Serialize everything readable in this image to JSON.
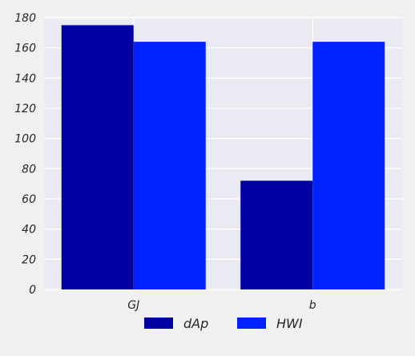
{
  "chart_data": {
    "type": "bar",
    "categories": [
      "GJ",
      "b"
    ],
    "series": [
      {
        "name": "dAp",
        "values": [
          175,
          72
        ],
        "color": "#0000a0"
      },
      {
        "name": "HWI",
        "values": [
          164,
          164
        ],
        "color": "#0022ff"
      }
    ],
    "ylim": [
      0,
      180
    ],
    "yticks": [
      "0",
      "20",
      "40",
      "60",
      "80",
      "100",
      "120",
      "140",
      "160",
      "180"
    ],
    "grid": true,
    "legend_position": "bottom-center",
    "plot_background": "#eaeaf2",
    "page_background": "#f0f0f0"
  }
}
